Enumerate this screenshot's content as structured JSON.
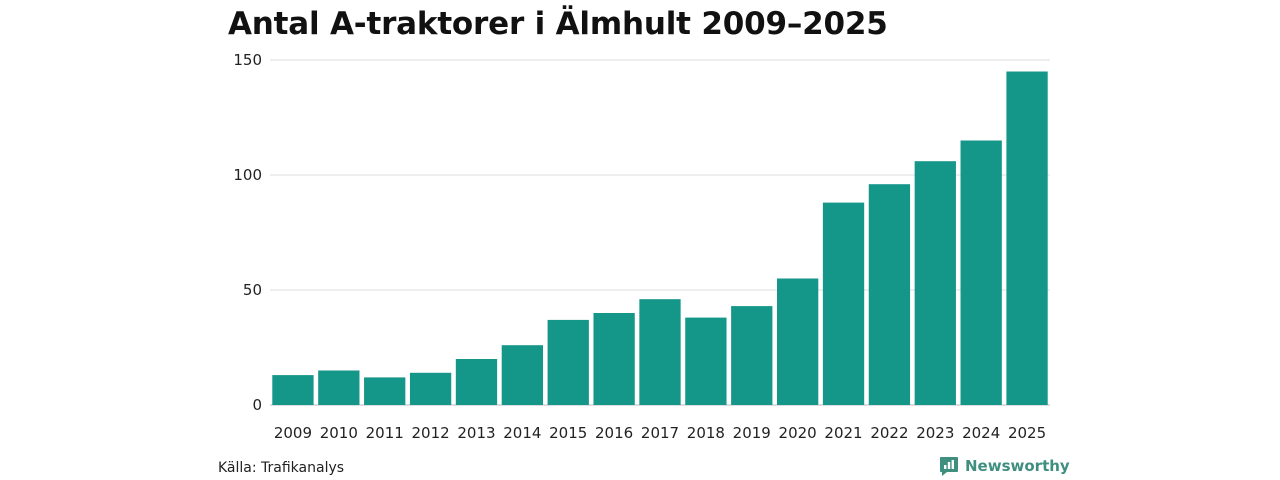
{
  "colors": {
    "bar": "#149688",
    "grid": "#dddddd",
    "brand": "#3f8f80"
  },
  "source_text": "Källa: Trafikanalys",
  "brand": {
    "name": "Newsworthy",
    "icon": "newsworthy-logo-icon"
  },
  "chart_data": {
    "type": "bar",
    "title": "Antal A-traktorer i Älmhult 2009–2025",
    "xlabel": "",
    "ylabel": "",
    "categories": [
      "2009",
      "2010",
      "2011",
      "2012",
      "2013",
      "2014",
      "2015",
      "2016",
      "2017",
      "2018",
      "2019",
      "2020",
      "2021",
      "2022",
      "2023",
      "2024",
      "2025"
    ],
    "values": [
      13,
      15,
      12,
      14,
      20,
      26,
      37,
      40,
      46,
      38,
      43,
      55,
      88,
      96,
      106,
      115,
      145
    ],
    "ylim": [
      0,
      150
    ],
    "yticks": [
      0,
      50,
      100,
      150
    ],
    "grid": true,
    "legend": "none"
  }
}
